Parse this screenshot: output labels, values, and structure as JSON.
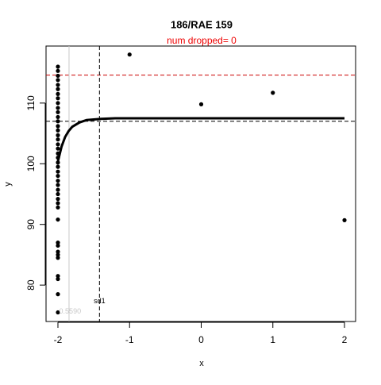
{
  "chart_data": {
    "type": "scatter",
    "title": "186/RAE 159",
    "subtitle": "num dropped= 0",
    "x_label": "x",
    "y_label": "y",
    "xlim": [
      -2.166,
      2.155
    ],
    "ylim": [
      74.0,
      119.4
    ],
    "xticks": [
      -2,
      -1,
      0,
      1,
      2
    ],
    "yticks": [
      80,
      90,
      100,
      110
    ],
    "series": [
      {
        "type": "scatter",
        "color": "#000000",
        "x": [
          -2,
          -2,
          -2,
          -2,
          -2,
          -2,
          -2,
          -2,
          -2,
          -2,
          -2,
          -2,
          -2,
          -2,
          -2,
          -2,
          -2,
          -2,
          -2,
          -2,
          -2,
          -2,
          -2,
          -2,
          -2,
          -2,
          -2,
          -2,
          -2,
          -2,
          -2,
          -2,
          -2,
          -2,
          -2,
          -2,
          -2,
          -2,
          -2,
          -2,
          -2,
          -2,
          -1,
          0,
          1,
          2
        ],
        "values": [
          116,
          115.3,
          114.5,
          113.8,
          113,
          112.3,
          111.5,
          110.8,
          110,
          109.2,
          108.5,
          107.7,
          107,
          106.2,
          105.5,
          104.7,
          104,
          103.2,
          102.5,
          101.7,
          101,
          100.2,
          99.5,
          98.7,
          98,
          97.2,
          96.5,
          95.7,
          95,
          94.2,
          93.5,
          92.8,
          90.8,
          87,
          86.5,
          85.5,
          85,
          84.5,
          81.5,
          81,
          78.5,
          75.5,
          118,
          109.8,
          111.7,
          90.7
        ]
      },
      {
        "type": "line",
        "color": "#000000",
        "x": [
          -2,
          -1.95,
          -1.9,
          -1.85,
          -1.8,
          -1.7,
          -1.6,
          -1.5,
          -1.4,
          -1.2,
          2
        ],
        "values": [
          100.4,
          102.8,
          104.4,
          105.4,
          106.1,
          106.8,
          107.2,
          107.3,
          107.4,
          107.5,
          107.5
        ]
      }
    ],
    "hlines": [
      {
        "value": 114.6,
        "color": "#cc0000"
      },
      {
        "value": 107.0,
        "color": "#000000"
      }
    ],
    "vlines": [
      {
        "value": -1.42,
        "color": "#000000",
        "dashed": true
      },
      {
        "value": -1.845,
        "color": "#c8c8c8",
        "dashed": false
      }
    ],
    "annotations": [
      {
        "text": "sd1",
        "x": -1.42,
        "y": 77.3,
        "color": "#000000"
      },
      {
        "text": "0.5590",
        "x": -1.83,
        "y": 75.6,
        "color": "#c8c8c8"
      }
    ]
  }
}
